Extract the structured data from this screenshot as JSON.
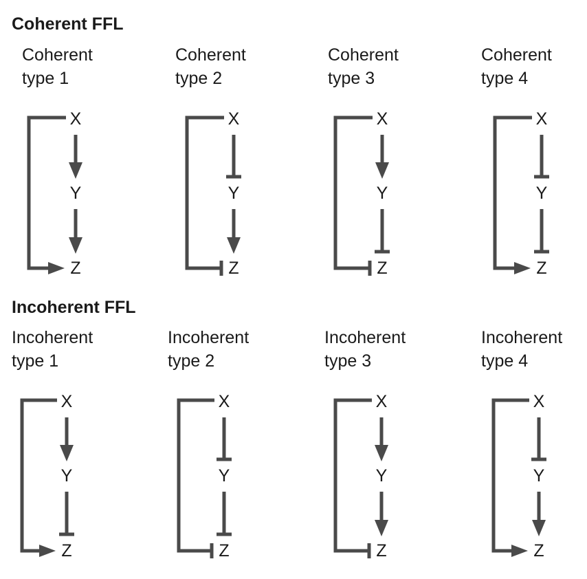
{
  "sections": [
    {
      "title": "Coherent FFL",
      "panels": [
        {
          "label_line1": "Coherent",
          "label_line2": "type 1",
          "x_to_y": "activate",
          "y_to_z": "activate",
          "x_to_z": "activate"
        },
        {
          "label_line1": "Coherent",
          "label_line2": "type 2",
          "x_to_y": "repress",
          "y_to_z": "activate",
          "x_to_z": "repress"
        },
        {
          "label_line1": "Coherent",
          "label_line2": "type 3",
          "x_to_y": "activate",
          "y_to_z": "repress",
          "x_to_z": "repress"
        },
        {
          "label_line1": "Coherent",
          "label_line2": "type 4",
          "x_to_y": "repress",
          "y_to_z": "repress",
          "x_to_z": "activate"
        }
      ]
    },
    {
      "title": "Incoherent FFL",
      "panels": [
        {
          "label_line1": "Incoherent",
          "label_line2": "type 1",
          "x_to_y": "activate",
          "y_to_z": "repress",
          "x_to_z": "activate"
        },
        {
          "label_line1": "Incoherent",
          "label_line2": "type 2",
          "x_to_y": "repress",
          "y_to_z": "repress",
          "x_to_z": "repress"
        },
        {
          "label_line1": "Incoherent",
          "label_line2": "type 3",
          "x_to_y": "activate",
          "y_to_z": "activate",
          "x_to_z": "repress"
        },
        {
          "label_line1": "Incoherent",
          "label_line2": "type 4",
          "x_to_y": "repress",
          "y_to_z": "activate",
          "x_to_z": "activate"
        }
      ]
    }
  ],
  "nodes": {
    "x": "X",
    "y": "Y",
    "z": "Z"
  },
  "colors": {
    "edge": "#4a4a4a",
    "text": "#1a1a1a"
  }
}
